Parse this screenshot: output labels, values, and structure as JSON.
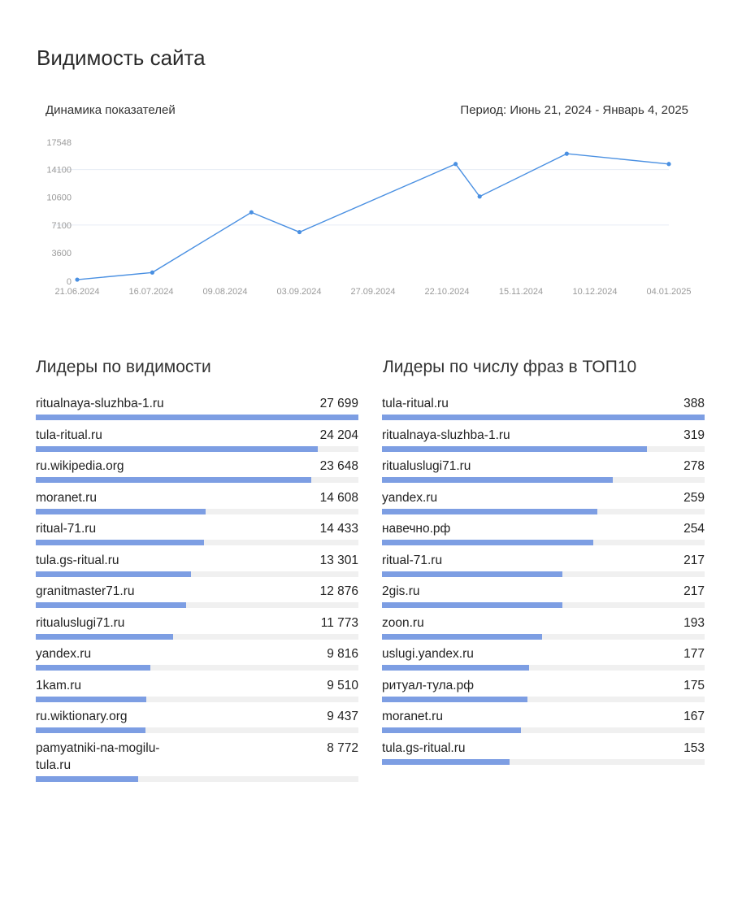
{
  "page": {
    "title": "Видимость сайта"
  },
  "chart_header": {
    "caption": "Динамика показателей",
    "period": "Период: Июнь 21, 2024 - Январь 4, 2025"
  },
  "colors": {
    "line": "#4a90e2",
    "bar": "#7d9ee3",
    "track": "#f0f0f0"
  },
  "chart_data": [
    {
      "type": "line",
      "title": "Динамика показателей",
      "x_ticks": [
        "21.06.2024",
        "16.07.2024",
        "09.08.2024",
        "03.09.2024",
        "27.09.2024",
        "22.10.2024",
        "15.11.2024",
        "10.12.2024",
        "04.01.2025"
      ],
      "y_ticks": [
        "0",
        "3600",
        "7100",
        "10600",
        "14100",
        "17548"
      ],
      "ylim": [
        0,
        17548
      ],
      "grid": true,
      "x": [
        "2024-06-21",
        "2024-07-16",
        "2024-08-18",
        "2024-09-03",
        "2024-10-25",
        "2024-11-02",
        "2024-12-01",
        "2025-01-04"
      ],
      "values": [
        200,
        1100,
        8700,
        6200,
        14800,
        10700,
        16100,
        14800
      ]
    },
    {
      "type": "bar",
      "title": "Лидеры по видимости",
      "categories": [
        "ritualnaya-sluzhba-1.ru",
        "tula-ritual.ru",
        "ru.wikipedia.org",
        "moranet.ru",
        "ritual-71.ru",
        "tula.gs-ritual.ru",
        "granitmaster71.ru",
        "ritualuslugi71.ru",
        "yandex.ru",
        "1kam.ru",
        "ru.wiktionary.org",
        "pamyatniki-na-mogilu-tula.ru"
      ],
      "values": [
        27699,
        24204,
        23648,
        14608,
        14433,
        13301,
        12876,
        11773,
        9816,
        9510,
        9437,
        8772
      ],
      "labels": [
        "27 699",
        "24 204",
        "23 648",
        "14 608",
        "14 433",
        "13 301",
        "12 876",
        "11 773",
        "9 816",
        "9 510",
        "9 437",
        "8 772"
      ]
    },
    {
      "type": "bar",
      "title": "Лидеры по числу фраз в ТОП10",
      "categories": [
        "tula-ritual.ru",
        "ritualnaya-sluzhba-1.ru",
        "ritualuslugi71.ru",
        "yandex.ru",
        "навечно.рф",
        "ritual-71.ru",
        "2gis.ru",
        "zoon.ru",
        "uslugi.yandex.ru",
        "ритуал-тула.рф",
        "moranet.ru",
        "tula.gs-ritual.ru"
      ],
      "values": [
        388,
        319,
        278,
        259,
        254,
        217,
        217,
        193,
        177,
        175,
        167,
        153
      ],
      "labels": [
        "388",
        "319",
        "278",
        "259",
        "254",
        "217",
        "217",
        "193",
        "177",
        "175",
        "167",
        "153"
      ]
    }
  ]
}
